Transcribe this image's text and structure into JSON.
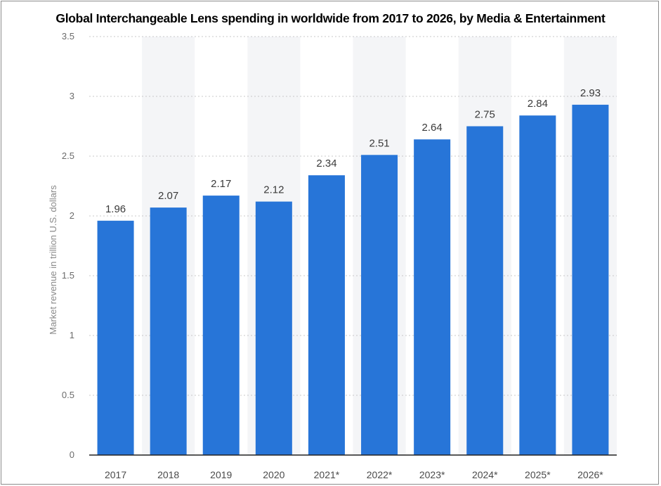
{
  "chart_data": {
    "type": "bar",
    "title": "Global Interchangeable Lens spending in worldwide from 2017 to 2026, by Media & Entertainment",
    "xlabel": "",
    "ylabel": "Market revenue in trillion U.S. dollars",
    "categories": [
      "2017",
      "2018",
      "2019",
      "2020",
      "2021*",
      "2022*",
      "2023*",
      "2024*",
      "2025*",
      "2026*"
    ],
    "values": [
      1.96,
      2.07,
      2.17,
      2.12,
      2.34,
      2.51,
      2.64,
      2.75,
      2.84,
      2.93
    ],
    "data_labels": [
      "1.96",
      "2.07",
      "2.17",
      "2.12",
      "2.34",
      "2.51",
      "2.64",
      "2.75",
      "2.84",
      "2.93"
    ],
    "yticks": [
      "0",
      "0.5",
      "1",
      "1.5",
      "2",
      "2.5",
      "3",
      "3.5"
    ],
    "ylim": [
      0,
      3.5
    ],
    "grid": true,
    "bar_color": "#2775d8",
    "alt_band_color": "#f4f5f7"
  }
}
